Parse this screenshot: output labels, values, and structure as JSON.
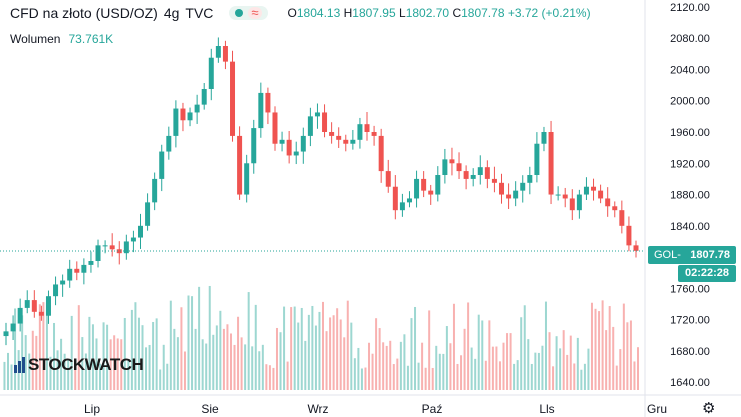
{
  "header": {
    "symbol": "CFD na złoto (USD/OZ)",
    "interval": "4g",
    "source": "TVC",
    "wave_icon": "≈",
    "ohlc": {
      "o_label": "O",
      "o": "1804.13",
      "h_label": "H",
      "h": "1807.95",
      "l_label": "L",
      "l": "1802.70",
      "c_label": "C",
      "c": "1807.78",
      "change": "+3.72 (+0.21%)"
    }
  },
  "volume": {
    "label": "Wolumen",
    "value": "73.761K"
  },
  "logo": {
    "text": "STOCKWATCH"
  },
  "price_label": {
    "prefix": "GOL-",
    "value": "1807.78"
  },
  "time_label": "02:22:28",
  "colors": {
    "up": "#26a69a",
    "down": "#ef5350",
    "grid": "#f0f3fa",
    "axis_text": "#131722"
  },
  "icons": {
    "settings": "gear-icon",
    "status": "dot-icon"
  },
  "chart_data": {
    "type": "candlestick",
    "title": "CFD na złoto (USD/OZ)",
    "xlabel": "",
    "ylabel": "",
    "ylim": [
      1630,
      2125
    ],
    "y_ticks": [
      2120,
      2080,
      2040,
      2000,
      1960,
      1920,
      1880,
      1840,
      1800,
      1760,
      1720,
      1680,
      1640
    ],
    "x_tick_labels": [
      "Lip",
      "Sie",
      "Wrz",
      "Paź",
      "Lls",
      "Gru"
    ],
    "grid": false,
    "last_price": 1807.78,
    "series": [
      {
        "name": "close",
        "values": [
          1705,
          1715,
          1735,
          1745,
          1730,
          1725,
          1750,
          1765,
          1770,
          1785,
          1780,
          1790,
          1795,
          1815,
          1815,
          1810,
          1805,
          1820,
          1825,
          1840,
          1870,
          1900,
          1935,
          1955,
          1990,
          1975,
          1985,
          1995,
          2015,
          2055,
          2070,
          2050,
          1955,
          1880,
          1920,
          1965,
          2010,
          1985,
          1945,
          1950,
          1930,
          1935,
          1955,
          1980,
          1985,
          1960,
          1955,
          1950,
          1945,
          1950,
          1970,
          1960,
          1955,
          1910,
          1890,
          1860,
          1870,
          1875,
          1900,
          1885,
          1880,
          1905,
          1925,
          1920,
          1910,
          1900,
          1905,
          1915,
          1900,
          1895,
          1880,
          1875,
          1885,
          1895,
          1905,
          1945,
          1960,
          1880,
          1880,
          1875,
          1860,
          1880,
          1890,
          1885,
          1875,
          1865,
          1860,
          1840,
          1815,
          1808
        ]
      }
    ]
  }
}
